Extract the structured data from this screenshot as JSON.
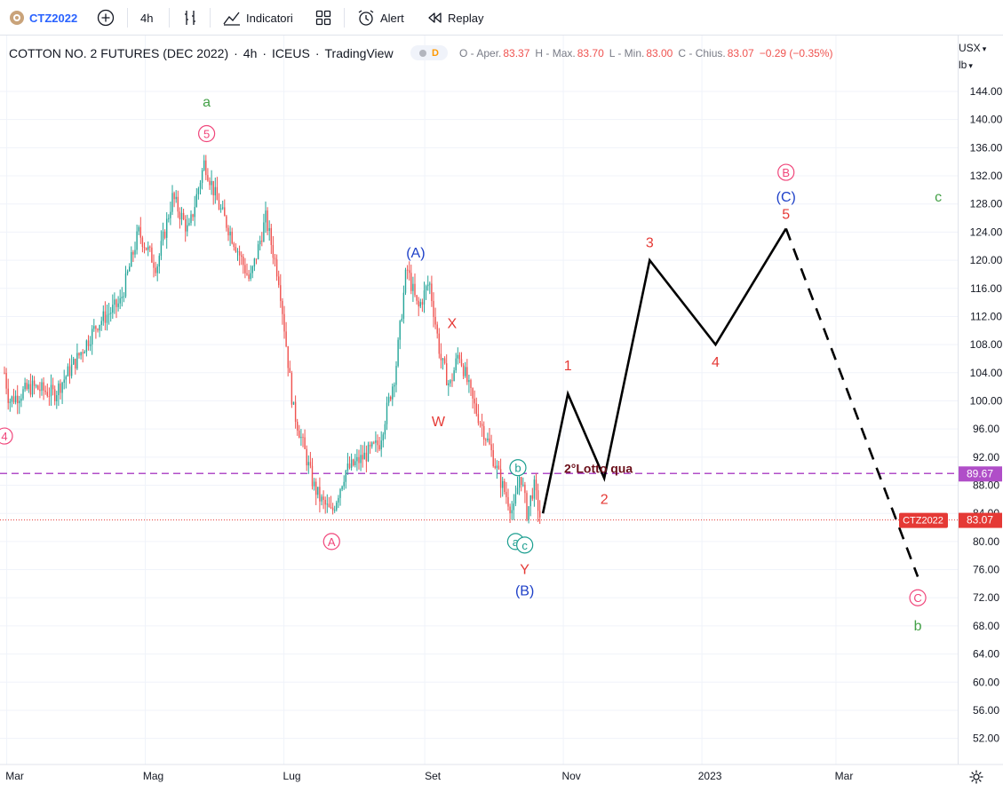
{
  "toolbar": {
    "symbol": "CTZ2022",
    "interval": "4h",
    "indicators_label": "Indicatori",
    "alert_label": "Alert",
    "replay_label": "Replay"
  },
  "legend": {
    "title": "COTTON NO. 2 FUTURES (DEC 2022)",
    "interval": "4h",
    "exchange": "ICEUS",
    "source": "TradingView",
    "badge": "D",
    "open_label": "O - Aper.",
    "open": "83.37",
    "high_label": "H - Max.",
    "high": "83.70",
    "low_label": "L - Min.",
    "low": "83.00",
    "close_label": "C - Chius.",
    "close": "83.07",
    "change": "−0.29 (−0.35%)"
  },
  "axis": {
    "currency": "USX",
    "unit": "lb"
  },
  "colors": {
    "up": "#26a69a",
    "down": "#ef5350",
    "wave_red": "#e53935",
    "wave_blue": "#1e40c8",
    "wave_green": "#43a047",
    "wave_pink": "#f0457a",
    "wave_teal": "#1a9e8f",
    "hline": "#b04ec8",
    "last_price": "#e53935"
  },
  "chart_data": {
    "type": "candlestick",
    "title": "COTTON NO. 2 FUTURES (DEC 2022)",
    "ylim": [
      48,
      148
    ],
    "y_ticks": [
      "144.00",
      "140.00",
      "136.00",
      "132.00",
      "128.00",
      "124.00",
      "120.00",
      "116.00",
      "112.00",
      "108.00",
      "104.00",
      "100.00",
      "96.00",
      "92.00",
      "88.00",
      "84.00",
      "80.00",
      "76.00",
      "72.00",
      "68.00",
      "64.00",
      "60.00",
      "56.00",
      "52.00"
    ],
    "x_ticks": [
      {
        "label": "Mar",
        "date": "2022-03-01"
      },
      {
        "label": "Mag",
        "date": "2022-05-01"
      },
      {
        "label": "Lug",
        "date": "2022-07-01"
      },
      {
        "label": "Set",
        "date": "2022-09-01"
      },
      {
        "label": "Nov",
        "date": "2022-11-01"
      },
      {
        "label": "2023",
        "date": "2023-01-01"
      },
      {
        "label": "Mar",
        "date": "2023-03-01"
      }
    ],
    "price_path": [
      {
        "date": "2022-02-28",
        "price": 104
      },
      {
        "date": "2022-03-02",
        "price": 100
      },
      {
        "date": "2022-03-12",
        "price": 102
      },
      {
        "date": "2022-03-22",
        "price": 101
      },
      {
        "date": "2022-04-01",
        "price": 106
      },
      {
        "date": "2022-04-10",
        "price": 111
      },
      {
        "date": "2022-04-20",
        "price": 114
      },
      {
        "date": "2022-04-28",
        "price": 124
      },
      {
        "date": "2022-05-06",
        "price": 119
      },
      {
        "date": "2022-05-13",
        "price": 129
      },
      {
        "date": "2022-05-20",
        "price": 124
      },
      {
        "date": "2022-05-27",
        "price": 134
      },
      {
        "date": "2022-06-02",
        "price": 128
      },
      {
        "date": "2022-06-10",
        "price": 122
      },
      {
        "date": "2022-06-16",
        "price": 117
      },
      {
        "date": "2022-06-23",
        "price": 126
      },
      {
        "date": "2022-06-29",
        "price": 117
      },
      {
        "date": "2022-07-05",
        "price": 99
      },
      {
        "date": "2022-07-10",
        "price": 93
      },
      {
        "date": "2022-07-14",
        "price": 88
      },
      {
        "date": "2022-07-17",
        "price": 86
      },
      {
        "date": "2022-07-22",
        "price": 84
      },
      {
        "date": "2022-07-28",
        "price": 90
      },
      {
        "date": "2022-08-05",
        "price": 92
      },
      {
        "date": "2022-08-12",
        "price": 94
      },
      {
        "date": "2022-08-19",
        "price": 104
      },
      {
        "date": "2022-08-24",
        "price": 119
      },
      {
        "date": "2022-08-29",
        "price": 113
      },
      {
        "date": "2022-09-03",
        "price": 117
      },
      {
        "date": "2022-09-08",
        "price": 106
      },
      {
        "date": "2022-09-12",
        "price": 102
      },
      {
        "date": "2022-09-16",
        "price": 107
      },
      {
        "date": "2022-09-22",
        "price": 100
      },
      {
        "date": "2022-09-29",
        "price": 94
      },
      {
        "date": "2022-10-05",
        "price": 88
      },
      {
        "date": "2022-10-10",
        "price": 84
      },
      {
        "date": "2022-10-13",
        "price": 90
      },
      {
        "date": "2022-10-16",
        "price": 84
      },
      {
        "date": "2022-10-19",
        "price": 88
      },
      {
        "date": "2022-10-22",
        "price": 83.07
      }
    ],
    "last_price": 83.07,
    "last_price_label": "CTZ2022",
    "horizontal_level": {
      "price": 89.67,
      "label": "89.67",
      "note": "2°Lotto qua"
    },
    "projection": {
      "solid": [
        {
          "date": "2022-10-23",
          "price": 84
        },
        {
          "date": "2022-11-03",
          "price": 101
        },
        {
          "date": "2022-11-19",
          "price": 89
        },
        {
          "date": "2022-12-09",
          "price": 120
        },
        {
          "date": "2023-01-07",
          "price": 108
        },
        {
          "date": "2023-02-07",
          "price": 124.5
        }
      ],
      "dashed": [
        {
          "date": "2023-02-07",
          "price": 124.5
        },
        {
          "date": "2023-04-06",
          "price": 75
        }
      ]
    },
    "wave_labels": [
      {
        "text": "a",
        "date": "2022-05-28",
        "price": 142.5,
        "style": "plain",
        "color": "wave_green"
      },
      {
        "text": "5",
        "date": "2022-05-28",
        "price": 138,
        "style": "circle",
        "color": "wave_pink"
      },
      {
        "text": "4",
        "date": "2022-02-28",
        "price": 95,
        "style": "circle",
        "color": "wave_pink"
      },
      {
        "text": "A",
        "date": "2022-07-22",
        "price": 80,
        "style": "circle",
        "color": "wave_pink"
      },
      {
        "text": "(A)",
        "date": "2022-08-28",
        "price": 121,
        "style": "plain",
        "color": "wave_blue"
      },
      {
        "text": "X",
        "date": "2022-09-13",
        "price": 111,
        "style": "plain",
        "color": "wave_red"
      },
      {
        "text": "W",
        "date": "2022-09-07",
        "price": 97,
        "style": "plain",
        "color": "wave_red"
      },
      {
        "text": "b",
        "date": "2022-10-12",
        "price": 90.5,
        "style": "circle",
        "color": "wave_teal"
      },
      {
        "text": "a",
        "date": "2022-10-11",
        "price": 80,
        "style": "circle",
        "color": "wave_teal"
      },
      {
        "text": "c",
        "date": "2022-10-15",
        "price": 79.5,
        "style": "circle",
        "color": "wave_teal"
      },
      {
        "text": "Y",
        "date": "2022-10-15",
        "price": 76,
        "style": "plain",
        "color": "wave_red"
      },
      {
        "text": "(B)",
        "date": "2022-10-15",
        "price": 73,
        "style": "plain",
        "color": "wave_blue"
      },
      {
        "text": "1",
        "date": "2022-11-03",
        "price": 105,
        "style": "plain",
        "color": "wave_red"
      },
      {
        "text": "2",
        "date": "2022-11-19",
        "price": 86,
        "style": "plain",
        "color": "wave_red"
      },
      {
        "text": "3",
        "date": "2022-12-09",
        "price": 122.5,
        "style": "plain",
        "color": "wave_red"
      },
      {
        "text": "4",
        "date": "2023-01-07",
        "price": 105.5,
        "style": "plain",
        "color": "wave_red"
      },
      {
        "text": "5",
        "date": "2023-02-07",
        "price": 126.5,
        "style": "plain",
        "color": "wave_red"
      },
      {
        "text": "(C)",
        "date": "2023-02-07",
        "price": 129,
        "style": "plain",
        "color": "wave_blue"
      },
      {
        "text": "B",
        "date": "2023-02-07",
        "price": 132.5,
        "style": "circle",
        "color": "wave_pink"
      },
      {
        "text": "c",
        "date": "2023-04-15",
        "price": 129,
        "style": "plain",
        "color": "wave_green"
      },
      {
        "text": "C",
        "date": "2023-04-06",
        "price": 72,
        "style": "circle",
        "color": "wave_pink"
      },
      {
        "text": "b",
        "date": "2023-04-06",
        "price": 68,
        "style": "plain",
        "color": "wave_green"
      }
    ]
  }
}
